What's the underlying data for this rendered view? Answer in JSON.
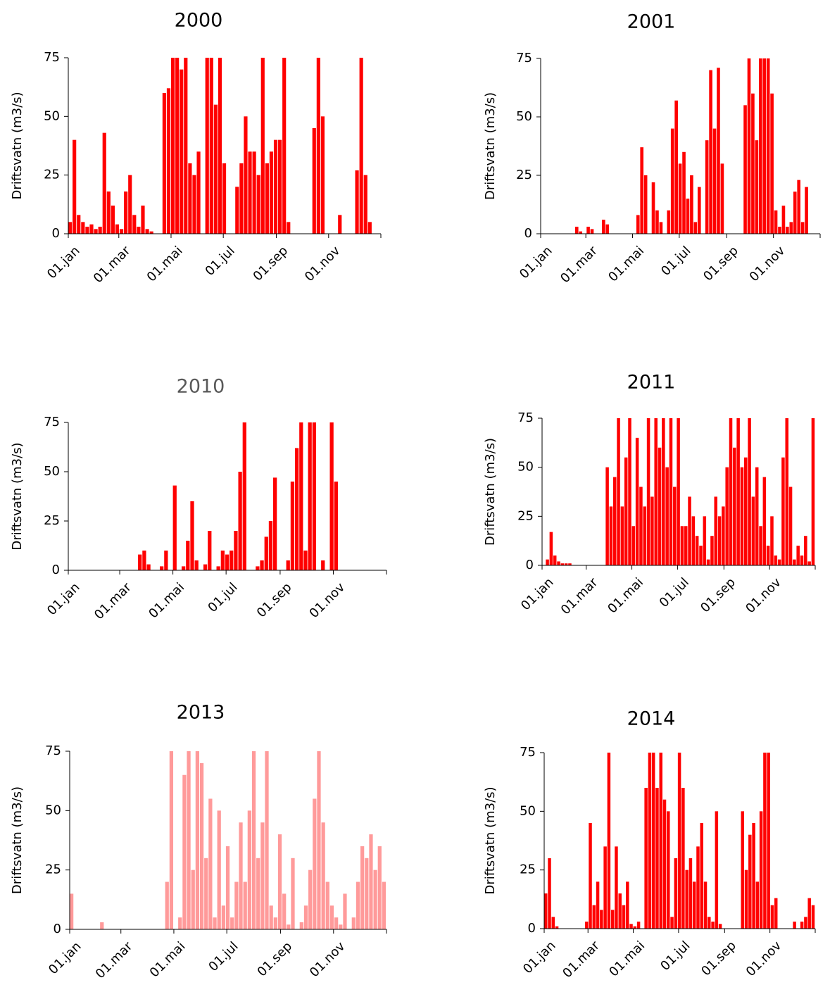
{
  "chart_data": [
    {
      "type": "bar",
      "title": "2000",
      "y_label": "Driftsvatn (m3/s)",
      "color": "#ff0000",
      "title_color": "#000000",
      "x": [
        1,
        6,
        11,
        16,
        21,
        26,
        31,
        36,
        41,
        46,
        51,
        56,
        61,
        66,
        71,
        76,
        81,
        86,
        91,
        96,
        101,
        106,
        111,
        116,
        121,
        126,
        131,
        136,
        141,
        146,
        151,
        156,
        161,
        166,
        171,
        176,
        181,
        186,
        191,
        196,
        201,
        206,
        211,
        216,
        221,
        226,
        231,
        236,
        241,
        246,
        251,
        256,
        261,
        266,
        271,
        276,
        281,
        286,
        291,
        296,
        301,
        306,
        311,
        316,
        321,
        326,
        331,
        336,
        341,
        346,
        351,
        356,
        361
      ],
      "values": [
        5,
        40,
        8,
        5,
        3,
        4,
        2,
        3,
        43,
        18,
        12,
        4,
        2,
        18,
        25,
        8,
        3,
        12,
        2,
        1,
        0,
        0,
        60,
        62,
        75,
        75,
        70,
        75,
        30,
        25,
        35,
        0,
        75,
        75,
        55,
        75,
        30,
        0,
        0,
        20,
        30,
        50,
        35,
        35,
        25,
        75,
        30,
        35,
        40,
        40,
        75,
        5,
        0,
        0,
        0,
        0,
        0,
        45,
        75,
        50,
        0,
        0,
        0,
        8,
        0,
        0,
        0,
        27,
        75,
        25,
        5,
        0,
        0
      ],
      "xlim": [
        1,
        366
      ],
      "xticks": [
        {
          "value": 1,
          "label": "01.jan"
        },
        {
          "value": 60,
          "label": "01.mar"
        },
        {
          "value": 121,
          "label": "01.mai"
        },
        {
          "value": 182,
          "label": "01.jul"
        },
        {
          "value": 244,
          "label": "01.sep"
        },
        {
          "value": 305,
          "label": "01.nov"
        }
      ],
      "ylim": [
        0,
        75
      ],
      "yticks": [
        0,
        25,
        50,
        75
      ]
    },
    {
      "type": "bar",
      "title": "2001",
      "y_label": "Driftsvatn (m3/s)",
      "color": "#ff0000",
      "title_color": "#000000",
      "x": [
        1,
        6,
        11,
        16,
        21,
        26,
        31,
        36,
        41,
        46,
        51,
        56,
        61,
        66,
        71,
        76,
        81,
        86,
        91,
        96,
        101,
        106,
        111,
        116,
        121,
        126,
        131,
        136,
        141,
        146,
        151,
        156,
        161,
        166,
        171,
        176,
        181,
        186,
        191,
        196,
        201,
        206,
        211,
        216,
        221,
        226,
        231,
        236,
        241,
        246,
        251,
        256,
        261,
        266,
        271,
        276,
        281,
        286,
        291,
        296,
        301,
        306,
        311,
        316,
        321,
        326,
        331,
        336,
        341,
        346,
        351,
        356,
        361
      ],
      "values": [
        0,
        0,
        0,
        0,
        0,
        0,
        0,
        0,
        0,
        3,
        1,
        0,
        3,
        2,
        0,
        0,
        6,
        4,
        0,
        0,
        0,
        0,
        0,
        0,
        0,
        8,
        37,
        25,
        0,
        22,
        10,
        5,
        0,
        10,
        45,
        57,
        30,
        35,
        15,
        25,
        5,
        20,
        0,
        40,
        70,
        45,
        71,
        30,
        0,
        0,
        0,
        0,
        0,
        55,
        75,
        60,
        40,
        75,
        75,
        75,
        60,
        10,
        3,
        12,
        3,
        5,
        18,
        23,
        5,
        20,
        0,
        0,
        0
      ],
      "xlim": [
        1,
        366
      ],
      "xticks": [
        {
          "value": 1,
          "label": "01.jan"
        },
        {
          "value": 60,
          "label": "01.mar"
        },
        {
          "value": 121,
          "label": "01.mai"
        },
        {
          "value": 182,
          "label": "01.jul"
        },
        {
          "value": 244,
          "label": "01.sep"
        },
        {
          "value": 305,
          "label": "01.nov"
        }
      ],
      "ylim": [
        0,
        75
      ],
      "yticks": [
        0,
        25,
        50,
        75
      ]
    },
    {
      "type": "bar",
      "title": "2010",
      "y_label": "Driftsvatn (m3/s)",
      "color": "#ff0000",
      "title_color": "#595959",
      "x": [
        1,
        6,
        11,
        16,
        21,
        26,
        31,
        36,
        41,
        46,
        51,
        56,
        61,
        66,
        71,
        76,
        81,
        86,
        91,
        96,
        101,
        106,
        111,
        116,
        121,
        126,
        131,
        136,
        141,
        146,
        151,
        156,
        161,
        166,
        171,
        176,
        181,
        186,
        191,
        196,
        201,
        206,
        211,
        216,
        221,
        226,
        231,
        236,
        241,
        246,
        251,
        256,
        261,
        266,
        271,
        276,
        281,
        286,
        291,
        296,
        301,
        306,
        311,
        316,
        321,
        326,
        331,
        336,
        341,
        346,
        351,
        356,
        361
      ],
      "values": [
        0,
        0,
        0,
        0,
        0,
        0,
        0,
        0,
        0,
        0,
        0,
        0,
        0,
        0,
        0,
        0,
        8,
        10,
        3,
        0,
        0,
        2,
        10,
        0,
        43,
        0,
        2,
        15,
        35,
        5,
        0,
        3,
        20,
        0,
        2,
        10,
        8,
        10,
        20,
        50,
        75,
        0,
        0,
        2,
        5,
        17,
        25,
        47,
        0,
        0,
        5,
        45,
        62,
        75,
        10,
        75,
        75,
        0,
        5,
        0,
        75,
        45,
        0,
        0,
        0,
        0,
        0,
        0,
        0,
        0,
        0,
        0,
        0
      ],
      "xlim": [
        1,
        366
      ],
      "xticks": [
        {
          "value": 1,
          "label": "01.jan"
        },
        {
          "value": 60,
          "label": "01.mar"
        },
        {
          "value": 121,
          "label": "01.mai"
        },
        {
          "value": 182,
          "label": "01.jul"
        },
        {
          "value": 244,
          "label": "01.sep"
        },
        {
          "value": 305,
          "label": "01.nov"
        }
      ],
      "ylim": [
        0,
        75
      ],
      "yticks": [
        0,
        25,
        50,
        75
      ]
    },
    {
      "type": "bar",
      "title": "2011",
      "y_label": "Driftsvatn (m3/s)",
      "color": "#ff0000",
      "title_color": "#000000",
      "x": [
        1,
        6,
        11,
        16,
        21,
        26,
        31,
        36,
        41,
        46,
        51,
        56,
        61,
        66,
        71,
        76,
        81,
        86,
        91,
        96,
        101,
        106,
        111,
        116,
        121,
        126,
        131,
        136,
        141,
        146,
        151,
        156,
        161,
        166,
        171,
        176,
        181,
        186,
        191,
        196,
        201,
        206,
        211,
        216,
        221,
        226,
        231,
        236,
        241,
        246,
        251,
        256,
        261,
        266,
        271,
        276,
        281,
        286,
        291,
        296,
        301,
        306,
        311,
        316,
        321,
        326,
        331,
        336,
        341,
        346,
        351,
        356,
        361
      ],
      "values": [
        0,
        3,
        17,
        5,
        2,
        1,
        1,
        1,
        0,
        0,
        0,
        0,
        0,
        0,
        0,
        0,
        0,
        50,
        30,
        45,
        75,
        30,
        55,
        75,
        20,
        65,
        40,
        30,
        75,
        35,
        75,
        60,
        75,
        50,
        75,
        40,
        75,
        20,
        20,
        35,
        25,
        15,
        10,
        25,
        3,
        15,
        35,
        25,
        30,
        50,
        75,
        60,
        75,
        50,
        55,
        75,
        35,
        50,
        20,
        45,
        10,
        25,
        5,
        3,
        55,
        75,
        40,
        3,
        10,
        5,
        15,
        2,
        75
      ],
      "xlim": [
        1,
        366
      ],
      "xticks": [
        {
          "value": 1,
          "label": "01.jan"
        },
        {
          "value": 60,
          "label": "01.mar"
        },
        {
          "value": 121,
          "label": "01.mai"
        },
        {
          "value": 182,
          "label": "01.jul"
        },
        {
          "value": 244,
          "label": "01.sep"
        },
        {
          "value": 305,
          "label": "01.nov"
        }
      ],
      "ylim": [
        0,
        75
      ],
      "yticks": [
        0,
        25,
        50,
        75
      ]
    },
    {
      "type": "bar",
      "title": "2013",
      "y_label": "Driftsvatn (m3/s)",
      "color": "#ff9a9a",
      "title_color": "#000000",
      "x": [
        1,
        6,
        11,
        16,
        21,
        26,
        31,
        36,
        41,
        46,
        51,
        56,
        61,
        66,
        71,
        76,
        81,
        86,
        91,
        96,
        101,
        106,
        111,
        116,
        121,
        126,
        131,
        136,
        141,
        146,
        151,
        156,
        161,
        166,
        171,
        176,
        181,
        186,
        191,
        196,
        201,
        206,
        211,
        216,
        221,
        226,
        231,
        236,
        241,
        246,
        251,
        256,
        261,
        266,
        271,
        276,
        281,
        286,
        291,
        296,
        301,
        306,
        311,
        316,
        321,
        326,
        331,
        336,
        341,
        346,
        351,
        356,
        361
      ],
      "values": [
        15,
        0,
        0,
        0,
        0,
        0,
        0,
        3,
        0,
        0,
        0,
        0,
        0,
        0,
        0,
        0,
        0,
        0,
        0,
        0,
        0,
        0,
        20,
        75,
        0,
        5,
        65,
        75,
        25,
        75,
        70,
        30,
        55,
        5,
        50,
        10,
        35,
        5,
        20,
        45,
        20,
        50,
        75,
        30,
        45,
        75,
        10,
        5,
        40,
        15,
        2,
        30,
        0,
        3,
        10,
        25,
        55,
        75,
        45,
        20,
        10,
        5,
        2,
        15,
        0,
        5,
        20,
        35,
        30,
        40,
        25,
        35,
        20
      ],
      "xlim": [
        1,
        366
      ],
      "xticks": [
        {
          "value": 1,
          "label": "01.jan"
        },
        {
          "value": 60,
          "label": "01.mar"
        },
        {
          "value": 121,
          "label": "01.mai"
        },
        {
          "value": 182,
          "label": "01.jul"
        },
        {
          "value": 244,
          "label": "01.sep"
        },
        {
          "value": 305,
          "label": "01.nov"
        }
      ],
      "ylim": [
        0,
        75
      ],
      "yticks": [
        0,
        25,
        50,
        75
      ]
    },
    {
      "type": "bar",
      "title": "2014",
      "y_label": "Driftsvatn (m3/s)",
      "color": "#ff0000",
      "title_color": "#000000",
      "x": [
        1,
        6,
        11,
        16,
        21,
        26,
        31,
        36,
        41,
        46,
        51,
        56,
        61,
        66,
        71,
        76,
        81,
        86,
        91,
        96,
        101,
        106,
        111,
        116,
        121,
        126,
        131,
        136,
        141,
        146,
        151,
        156,
        161,
        166,
        171,
        176,
        181,
        186,
        191,
        196,
        201,
        206,
        211,
        216,
        221,
        226,
        231,
        236,
        241,
        246,
        251,
        256,
        261,
        266,
        271,
        276,
        281,
        286,
        291,
        296,
        301,
        306,
        311,
        316,
        321,
        326,
        331,
        336,
        341,
        346,
        351,
        356,
        361
      ],
      "values": [
        15,
        30,
        5,
        1,
        0,
        0,
        0,
        0,
        0,
        0,
        0,
        3,
        45,
        10,
        20,
        8,
        35,
        75,
        8,
        35,
        15,
        10,
        20,
        2,
        1,
        3,
        0,
        60,
        75,
        75,
        60,
        75,
        55,
        50,
        5,
        30,
        75,
        60,
        25,
        30,
        20,
        35,
        45,
        20,
        5,
        3,
        50,
        2,
        0,
        0,
        0,
        0,
        0,
        50,
        25,
        40,
        45,
        20,
        50,
        75,
        75,
        10,
        13,
        0,
        0,
        0,
        0,
        3,
        0,
        3,
        5,
        13,
        10
      ],
      "xlim": [
        1,
        366
      ],
      "xticks": [
        {
          "value": 1,
          "label": "01.jan"
        },
        {
          "value": 60,
          "label": "01.mar"
        },
        {
          "value": 121,
          "label": "01.mai"
        },
        {
          "value": 182,
          "label": "01.jul"
        },
        {
          "value": 244,
          "label": "01.sep"
        },
        {
          "value": 305,
          "label": "01.nov"
        }
      ],
      "ylim": [
        0,
        75
      ],
      "yticks": [
        0,
        25,
        50,
        75
      ]
    }
  ]
}
